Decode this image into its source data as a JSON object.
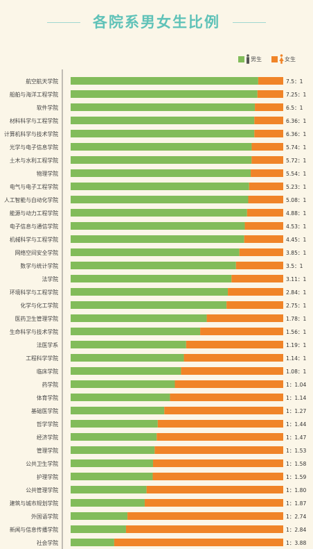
{
  "title": "各院系男女生比例",
  "legend": {
    "male_label": "男生",
    "female_label": "女生",
    "male_color": "#82bc5a",
    "female_color": "#f08428",
    "male_icon": "man-icon",
    "female_icon": "woman-icon"
  },
  "chart_data": {
    "type": "bar",
    "orientation": "horizontal-stacked-percent",
    "title": "各院系男女生比例",
    "categories": [
      "航空航天学院",
      "船舶与海洋工程学院",
      "软件学院",
      "材料科学与工程学院",
      "计算机科学与技术学院",
      "光学与电子信息学院",
      "土木与水利工程学院",
      "物理学院",
      "电气与电子工程学院",
      "人工智能与自动化学院",
      "能源与动力工程学院",
      "电子信息与通信学院",
      "机械科学与工程学院",
      "网络空间安全学院",
      "数学与统计学院",
      "法学院",
      "环境科学与工程学院",
      "化学与化工学院",
      "医药卫生管理学院",
      "生命科学与技术学院",
      "法医学系",
      "工程科学学院",
      "临床学院",
      "药学院",
      "体育学院",
      "基础医学院",
      "哲学学院",
      "经济学院",
      "管理学院",
      "公共卫生学院",
      "护理学院",
      "公共管理学院",
      "建筑与城市规划学院",
      "外国语学院",
      "新闻与信息传播学院",
      "社会学院"
    ],
    "ratio_labels": [
      "7.5：1",
      "7.25：1",
      "6.5：1",
      "6.36：1",
      "6.36：1",
      "5.74：1",
      "5.72：1",
      "5.54：1",
      "5.23：1",
      "5.08：1",
      "4.88：1",
      "4.53：1",
      "4.45：1",
      "3.85：1",
      "3.5：1",
      "3.11：1",
      "2.84：1",
      "2.75：1",
      "1.78：1",
      "1.56：1",
      "1.19：1",
      "1.14：1",
      "1.08：1",
      "1：1.04",
      "1：1.14",
      "1：1.27",
      "1：1.44",
      "1：1.47",
      "1：1.53",
      "1：1.58",
      "1：1.59",
      "1：1.80",
      "1：1.87",
      "1：2.74",
      "1：2.84",
      "1：3.88"
    ],
    "series": [
      {
        "name": "男生",
        "values": [
          7.5,
          7.25,
          6.5,
          6.36,
          6.36,
          5.74,
          5.72,
          5.54,
          5.23,
          5.08,
          4.88,
          4.53,
          4.45,
          3.85,
          3.5,
          3.11,
          2.84,
          2.75,
          1.78,
          1.56,
          1.19,
          1.14,
          1.08,
          1,
          1,
          1,
          1,
          1,
          1,
          1,
          1,
          1,
          1,
          1,
          1,
          1
        ]
      },
      {
        "name": "女生",
        "values": [
          1,
          1,
          1,
          1,
          1,
          1,
          1,
          1,
          1,
          1,
          1,
          1,
          1,
          1,
          1,
          1,
          1,
          1,
          1,
          1,
          1,
          1,
          1,
          1.04,
          1.14,
          1.27,
          1.44,
          1.47,
          1.53,
          1.58,
          1.59,
          1.8,
          1.87,
          2.74,
          2.84,
          3.88
        ]
      }
    ],
    "legend_position": "top-right",
    "grid": false
  }
}
